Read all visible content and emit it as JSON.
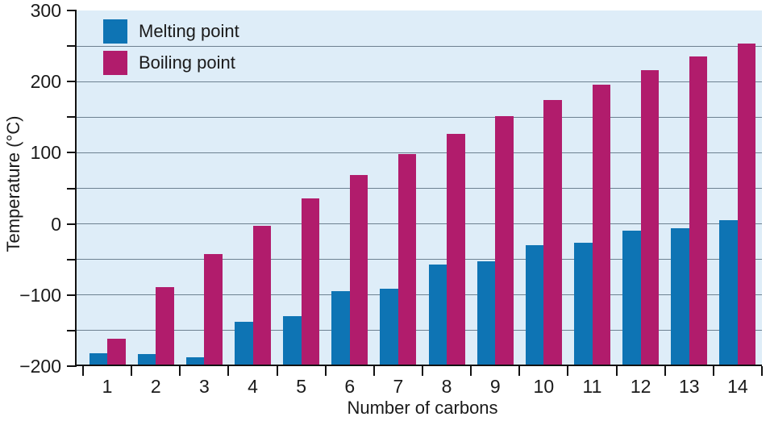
{
  "chart_data": {
    "type": "bar",
    "title": "",
    "xlabel": "Number of carbons",
    "ylabel": "Temperature (°C)",
    "categories": [
      "1",
      "2",
      "3",
      "4",
      "5",
      "6",
      "7",
      "8",
      "9",
      "10",
      "11",
      "12",
      "13",
      "14"
    ],
    "series": [
      {
        "name": "Melting point",
        "color": "#0e74b4",
        "values": [
          -182,
          -183,
          -188,
          -138,
          -130,
          -95,
          -91,
          -57,
          -53,
          -30,
          -26,
          -10,
          -6,
          5
        ]
      },
      {
        "name": "Boiling point",
        "color": "#b11c6c",
        "values": [
          -162,
          -89,
          -42,
          -3,
          36,
          69,
          98,
          126,
          151,
          174,
          196,
          216,
          235,
          254
        ]
      }
    ],
    "ylim": [
      -200,
      300
    ],
    "ytick_step": 50,
    "ytick_labels": [
      {
        "value": 300,
        "label": "300"
      },
      {
        "value": 200,
        "label": "200"
      },
      {
        "value": 100,
        "label": "100"
      },
      {
        "value": 0,
        "label": "0"
      },
      {
        "value": -100,
        "label": "−100"
      },
      {
        "value": -200,
        "label": "−200"
      }
    ],
    "bars_baseline": -200,
    "grid": true,
    "legend_position": "top-left",
    "plot_bg": "#deedf8",
    "grid_color": "#6d8191",
    "axis_color": "#111111"
  }
}
